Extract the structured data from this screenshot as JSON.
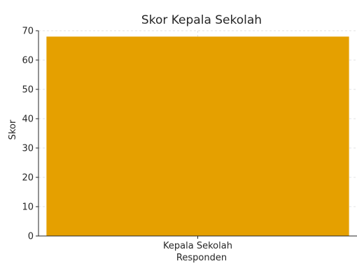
{
  "chart_data": {
    "type": "bar",
    "title": "Skor Kepala Sekolah",
    "xlabel": "Responden",
    "ylabel": "Skor",
    "categories": [
      "Kepala Sekolah"
    ],
    "values": [
      68
    ],
    "ylim": [
      0,
      70
    ],
    "yticks": [
      0,
      10,
      20,
      30,
      40,
      50,
      60,
      70
    ],
    "grid": true,
    "bar_color": "#E5A000"
  }
}
